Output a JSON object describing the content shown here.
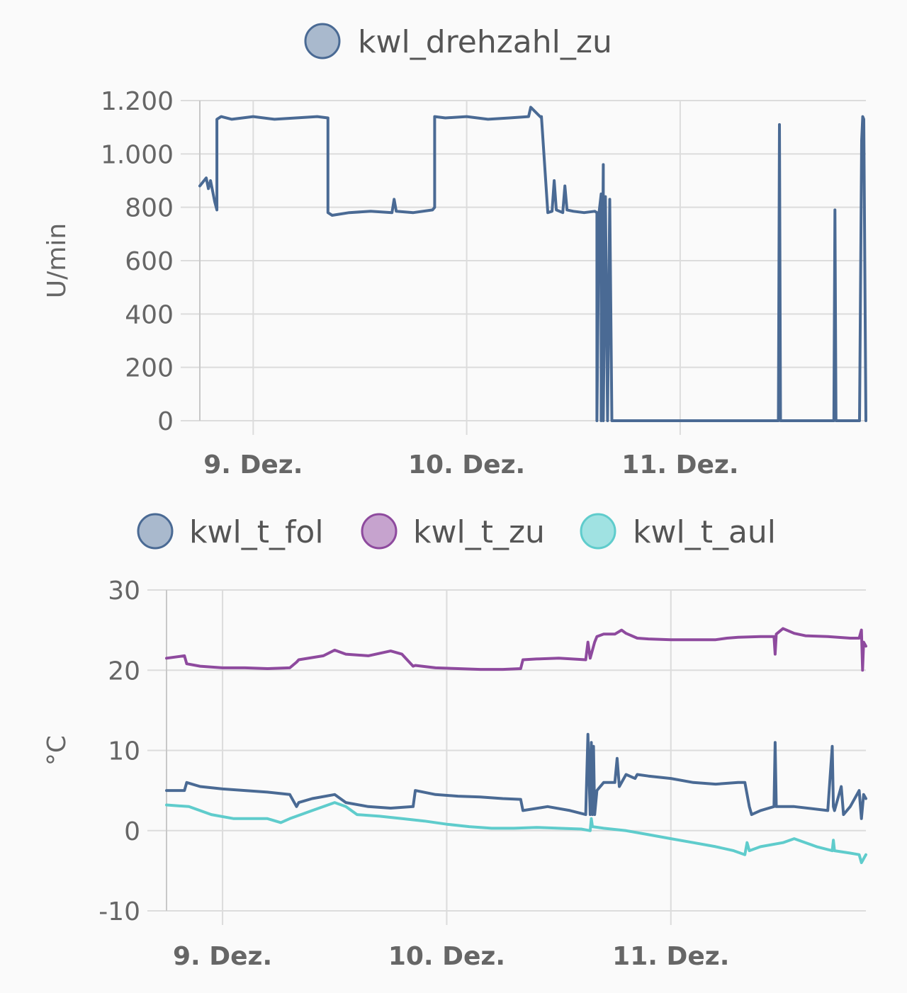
{
  "chart_data": [
    {
      "type": "line",
      "ylabel": "U/min",
      "ylim": [
        0,
        1200
      ],
      "yticks": [
        0,
        200,
        400,
        600,
        800,
        1000,
        1200
      ],
      "ytick_labels": [
        "0",
        "200",
        "400",
        "600",
        "800",
        "1.000",
        "1.200"
      ],
      "xlim": [
        8.75,
        11.87
      ],
      "xticks": [
        9,
        10,
        11
      ],
      "xtick_labels": [
        "9. Dez.",
        "10. Dez.",
        "11. Dez."
      ],
      "grid": true,
      "legend_position": "top-center",
      "series": [
        {
          "name": "kwl_drehzahl_zu",
          "color": "#4a6a94",
          "fill": "#a9b9cd",
          "x": [
            8.75,
            8.78,
            8.79,
            8.8,
            8.82,
            8.83,
            8.83,
            8.85,
            8.9,
            8.95,
            9.0,
            9.1,
            9.2,
            9.3,
            9.35,
            9.35,
            9.37,
            9.45,
            9.55,
            9.65,
            9.66,
            9.67,
            9.75,
            9.84,
            9.85,
            9.85,
            9.9,
            10.0,
            10.1,
            10.2,
            10.29,
            10.3,
            10.35,
            10.35,
            10.38,
            10.4,
            10.41,
            10.42,
            10.45,
            10.46,
            10.47,
            10.5,
            10.55,
            10.6,
            10.61,
            10.61,
            10.62,
            10.63,
            10.63,
            10.64,
            10.64,
            10.65,
            10.66,
            10.67,
            10.68,
            11.0,
            11.4,
            11.46,
            11.465,
            11.47,
            11.71,
            11.72,
            11.725,
            11.73,
            11.84,
            11.85,
            11.855,
            11.86,
            11.87
          ],
          "y": [
            880,
            910,
            870,
            900,
            820,
            790,
            1130,
            1140,
            1130,
            1135,
            1140,
            1130,
            1135,
            1140,
            1135,
            780,
            770,
            780,
            785,
            780,
            830,
            785,
            780,
            790,
            800,
            1140,
            1135,
            1140,
            1130,
            1135,
            1140,
            1175,
            1135,
            1140,
            780,
            785,
            900,
            790,
            780,
            880,
            790,
            785,
            780,
            785,
            780,
            0,
            780,
            850,
            0,
            960,
            0,
            840,
            0,
            830,
            0,
            0,
            0,
            0,
            1110,
            0,
            0,
            0,
            790,
            0,
            0,
            1050,
            1140,
            1130,
            0
          ]
        }
      ]
    },
    {
      "type": "line",
      "ylabel": "°C",
      "ylim": [
        -10,
        30
      ],
      "yticks": [
        -10,
        0,
        10,
        20,
        30
      ],
      "ytick_labels": [
        "-10",
        "0",
        "10",
        "20",
        "30"
      ],
      "xlim": [
        8.75,
        11.87
      ],
      "xticks": [
        9,
        10,
        11
      ],
      "xtick_labels": [
        "9. Dez.",
        "10. Dez.",
        "11. Dez."
      ],
      "grid": true,
      "legend_position": "top-center",
      "series": [
        {
          "name": "kwl_t_fol",
          "color": "#4a6a94",
          "fill": "#a9b9cd",
          "x": [
            8.75,
            8.83,
            8.84,
            8.9,
            9.0,
            9.1,
            9.2,
            9.3,
            9.33,
            9.34,
            9.4,
            9.5,
            9.55,
            9.65,
            9.75,
            9.85,
            9.86,
            9.95,
            10.05,
            10.15,
            10.25,
            10.33,
            10.34,
            10.45,
            10.55,
            10.62,
            10.63,
            10.64,
            10.645,
            10.65,
            10.655,
            10.66,
            10.67,
            10.7,
            10.75,
            10.76,
            10.77,
            10.8,
            10.84,
            10.85,
            10.9,
            11.0,
            11.1,
            11.2,
            11.3,
            11.33,
            11.35,
            11.36,
            11.4,
            11.46,
            11.465,
            11.47,
            11.55,
            11.7,
            11.72,
            11.725,
            11.73,
            11.76,
            11.77,
            11.8,
            11.84,
            11.85,
            11.86,
            11.87
          ],
          "y": [
            5,
            5,
            6,
            5.5,
            5.2,
            5.0,
            4.8,
            4.5,
            3,
            3.5,
            4,
            4.5,
            3.5,
            3,
            2.8,
            3.0,
            5.0,
            4.5,
            4.3,
            4.2,
            4.0,
            3.9,
            2.5,
            3,
            2.5,
            2,
            12,
            2,
            11,
            2,
            10.5,
            2,
            5,
            6,
            6,
            9,
            5.5,
            7,
            6.5,
            7,
            6.8,
            6.5,
            6,
            5.8,
            6,
            6,
            3,
            2,
            2.5,
            3,
            11,
            3,
            3,
            2.5,
            10.5,
            3,
            2.5,
            5.5,
            2,
            3,
            5,
            1.5,
            4.5,
            4
          ]
        },
        {
          "name": "kwl_t_zu",
          "color": "#8e4a9e",
          "fill": "#c6a3ce",
          "x": [
            8.75,
            8.83,
            8.84,
            8.9,
            9.0,
            9.1,
            9.2,
            9.3,
            9.33,
            9.34,
            9.45,
            9.5,
            9.55,
            9.65,
            9.75,
            9.8,
            9.85,
            9.86,
            9.95,
            10.05,
            10.15,
            10.25,
            10.33,
            10.34,
            10.4,
            10.5,
            10.62,
            10.63,
            10.64,
            10.66,
            10.67,
            10.7,
            10.75,
            10.78,
            10.8,
            10.85,
            10.9,
            11.0,
            11.1,
            11.2,
            11.25,
            11.3,
            11.4,
            11.46,
            11.465,
            11.47,
            11.5,
            11.55,
            11.6,
            11.7,
            11.8,
            11.84,
            11.85,
            11.855,
            11.86,
            11.87
          ],
          "y": [
            21.5,
            21.8,
            20.8,
            20.5,
            20.3,
            20.3,
            20.2,
            20.3,
            21,
            21.3,
            21.8,
            22.5,
            22.0,
            21.8,
            22.4,
            22.0,
            20.5,
            20.6,
            20.3,
            20.2,
            20.1,
            20.1,
            20.2,
            21.3,
            21.4,
            21.5,
            21.3,
            23.5,
            21.5,
            23.5,
            24.2,
            24.5,
            24.5,
            25.0,
            24.6,
            24.0,
            23.9,
            23.8,
            23.8,
            23.8,
            24.0,
            24.1,
            24.2,
            24.2,
            22.0,
            24.5,
            25.2,
            24.6,
            24.3,
            24.2,
            24.0,
            24.0,
            25.0,
            20.0,
            23.5,
            23.0
          ]
        },
        {
          "name": "kwl_t_aul",
          "color": "#5fcccc",
          "fill": "#a0e2e2",
          "x": [
            8.75,
            8.85,
            8.95,
            9.05,
            9.2,
            9.26,
            9.3,
            9.4,
            9.5,
            9.55,
            9.6,
            9.7,
            9.8,
            9.9,
            10.0,
            10.1,
            10.2,
            10.3,
            10.4,
            10.5,
            10.6,
            10.64,
            10.645,
            10.65,
            10.7,
            10.8,
            10.9,
            11.0,
            11.1,
            11.2,
            11.28,
            11.33,
            11.34,
            11.35,
            11.4,
            11.5,
            11.55,
            11.6,
            11.65,
            11.72,
            11.725,
            11.73,
            11.8,
            11.84,
            11.85,
            11.86,
            11.87
          ],
          "y": [
            3.2,
            3.0,
            2.0,
            1.5,
            1.5,
            1.0,
            1.5,
            2.5,
            3.5,
            3.0,
            2.0,
            1.8,
            1.5,
            1.2,
            0.8,
            0.5,
            0.3,
            0.3,
            0.4,
            0.3,
            0.2,
            0.0,
            1.5,
            0.5,
            0.3,
            0,
            -0.5,
            -1.0,
            -1.5,
            -2.0,
            -2.5,
            -3.0,
            -1.5,
            -2.5,
            -2.0,
            -1.5,
            -1.0,
            -1.5,
            -2.0,
            -2.5,
            -1.2,
            -2.5,
            -2.8,
            -3.0,
            -4.0,
            -3.5,
            -3.0
          ]
        }
      ]
    }
  ]
}
